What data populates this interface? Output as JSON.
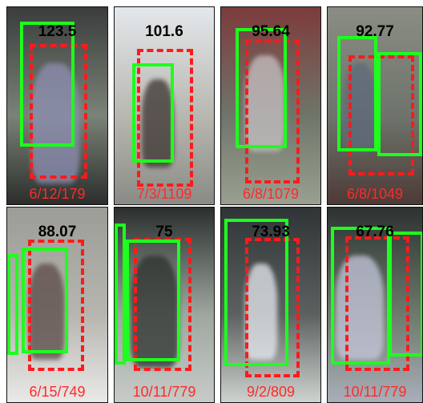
{
  "panels": [
    {
      "score": "123.5",
      "frame": "6/12/179",
      "bg": [
        "#3a3d3c",
        "#7b8277",
        "#2b2e2b"
      ],
      "person": "#8e8fb4"
    },
    {
      "score": "101.6",
      "frame": "7/3/1109",
      "bg": [
        "#e4e8ec",
        "#b8b7b0",
        "#8b8b86"
      ],
      "person": "#3b3331"
    },
    {
      "score": "95.64",
      "frame": "6/8/1079",
      "bg": [
        "#7d3b3c",
        "#6f7569",
        "#9aa090"
      ],
      "person": "#c7c2c4"
    },
    {
      "score": "92.77",
      "frame": "6/8/1049",
      "bg": [
        "#8a8d83",
        "#6e746c",
        "#4d3a36"
      ],
      "person": "#5e6a7c"
    },
    {
      "score": "88.07",
      "frame": "6/15/749",
      "bg": [
        "#9c9d97",
        "#b7b5b0",
        "#e9e9e7"
      ],
      "person": "#5a4945"
    },
    {
      "score": "75",
      "frame": "10/11/779",
      "bg": [
        "#2a2f2d",
        "#9ea79f",
        "#c7cbc8"
      ],
      "person": "#2d302d"
    },
    {
      "score": "73.93",
      "frame": "9/2/809",
      "bg": [
        "#2f3436",
        "#5c6160",
        "#cfd3cf"
      ],
      "person": "#e7eaf0"
    },
    {
      "score": "67.76",
      "frame": "10/11/779",
      "bg": [
        "#2c3231",
        "#6d7a6c",
        "#a9aeb9"
      ],
      "person": "#c6c7dc"
    }
  ]
}
